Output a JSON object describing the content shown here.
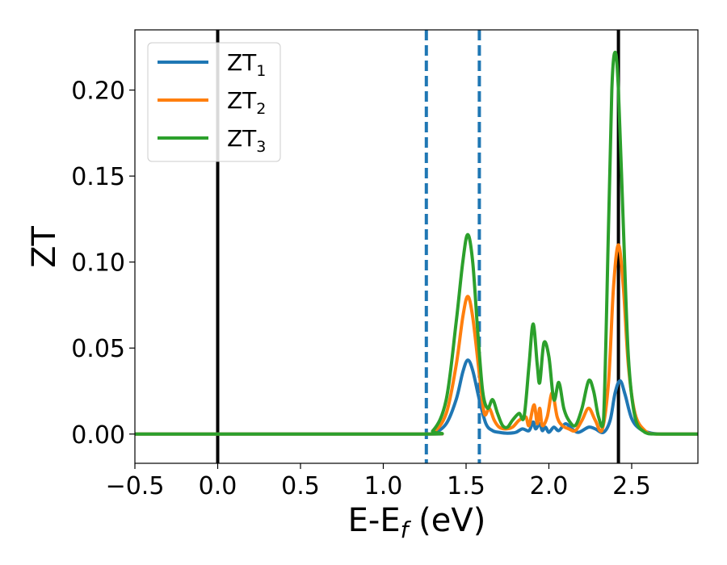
{
  "chart_data": {
    "type": "line",
    "xlabel": {
      "main": "E-E",
      "sub": "f",
      "unit": " (eV)"
    },
    "ylabel": "ZT",
    "xlim": [
      -0.5,
      2.9
    ],
    "ylim": [
      -0.017,
      0.235
    ],
    "xticks": [
      -0.5,
      0.0,
      0.5,
      1.0,
      1.5,
      2.0,
      2.5
    ],
    "xtick_labels": [
      "−0.5",
      "0.0",
      "0.5",
      "1.0",
      "1.5",
      "2.0",
      "2.5"
    ],
    "yticks": [
      0.0,
      0.05,
      0.1,
      0.15,
      0.2
    ],
    "ytick_labels": [
      "0.00",
      "0.05",
      "0.10",
      "0.15",
      "0.20"
    ],
    "grid": false,
    "legend_position": "top-left",
    "vertical_lines": [
      {
        "x": 0.0,
        "style": "solid",
        "color": "#000000"
      },
      {
        "x": 1.26,
        "style": "dashed",
        "color": "#1f77b4"
      },
      {
        "x": 1.58,
        "style": "dashed",
        "color": "#1f77b4"
      },
      {
        "x": 2.42,
        "style": "solid",
        "color": "#000000"
      }
    ],
    "series": [
      {
        "name": "ZT",
        "sub": "1",
        "color": "#1f77b4",
        "x": [
          -0.5,
          1.2,
          1.3,
          1.38,
          1.44,
          1.48,
          1.51,
          1.54,
          1.58,
          1.62,
          1.66,
          1.7,
          1.75,
          1.8,
          1.84,
          1.88,
          1.905,
          1.92,
          1.945,
          1.96,
          1.98,
          2.0,
          2.03,
          2.06,
          2.1,
          2.14,
          2.18,
          2.24,
          2.28,
          2.33,
          2.37,
          2.4,
          2.43,
          2.46,
          2.5,
          2.55,
          2.62,
          2.7,
          2.9
        ],
        "y": [
          0,
          0,
          0.0005,
          0.006,
          0.02,
          0.036,
          0.043,
          0.037,
          0.02,
          0.006,
          0.002,
          0.001,
          0.0005,
          0.001,
          0.003,
          0.002,
          0.007,
          0.003,
          0.006,
          0.002,
          0.004,
          0.001,
          0.004,
          0.002,
          0.006,
          0.003,
          0.001,
          0.004,
          0.003,
          0.001,
          0.008,
          0.024,
          0.031,
          0.023,
          0.009,
          0.003,
          0.0005,
          0,
          0
        ]
      },
      {
        "name": "ZT",
        "sub": "2",
        "color": "#ff7f0e",
        "x": [
          -0.5,
          1.2,
          1.3,
          1.38,
          1.44,
          1.48,
          1.51,
          1.54,
          1.58,
          1.61,
          1.64,
          1.67,
          1.7,
          1.74,
          1.78,
          1.82,
          1.86,
          1.88,
          1.91,
          1.93,
          1.945,
          1.96,
          1.99,
          2.02,
          2.05,
          2.08,
          2.12,
          2.16,
          2.2,
          2.24,
          2.28,
          2.32,
          2.36,
          2.39,
          2.42,
          2.45,
          2.48,
          2.52,
          2.58,
          2.65,
          2.9
        ],
        "y": [
          0,
          0,
          0.001,
          0.012,
          0.04,
          0.068,
          0.08,
          0.068,
          0.035,
          0.012,
          0.015,
          0.008,
          0.004,
          0.003,
          0.004,
          0.008,
          0.01,
          0.005,
          0.017,
          0.006,
          0.015,
          0.005,
          0.01,
          0.024,
          0.01,
          0.005,
          0.003,
          0.002,
          0.008,
          0.015,
          0.008,
          0.002,
          0.03,
          0.085,
          0.11,
          0.085,
          0.04,
          0.012,
          0.002,
          0,
          0
        ]
      },
      {
        "name": "ZT",
        "sub": "3",
        "color": "#2ca02c",
        "x": [
          -0.5,
          1.2,
          1.3,
          1.38,
          1.44,
          1.48,
          1.51,
          1.54,
          1.57,
          1.6,
          1.63,
          1.66,
          1.69,
          1.72,
          1.75,
          1.78,
          1.82,
          1.85,
          1.88,
          1.905,
          1.93,
          1.945,
          1.97,
          2.0,
          2.03,
          2.06,
          2.09,
          2.12,
          2.16,
          2.2,
          2.24,
          2.27,
          2.3,
          2.33,
          2.36,
          2.38,
          2.4,
          2.42,
          2.45,
          2.48,
          2.52,
          2.58,
          2.65,
          2.9
        ],
        "y": [
          0,
          0,
          0.002,
          0.02,
          0.065,
          0.1,
          0.116,
          0.1,
          0.06,
          0.025,
          0.015,
          0.02,
          0.012,
          0.005,
          0.004,
          0.008,
          0.012,
          0.01,
          0.04,
          0.064,
          0.04,
          0.03,
          0.053,
          0.045,
          0.02,
          0.03,
          0.015,
          0.008,
          0.005,
          0.015,
          0.031,
          0.025,
          0.01,
          0.008,
          0.12,
          0.2,
          0.222,
          0.2,
          0.12,
          0.045,
          0.01,
          0.001,
          0,
          0
        ]
      }
    ]
  }
}
